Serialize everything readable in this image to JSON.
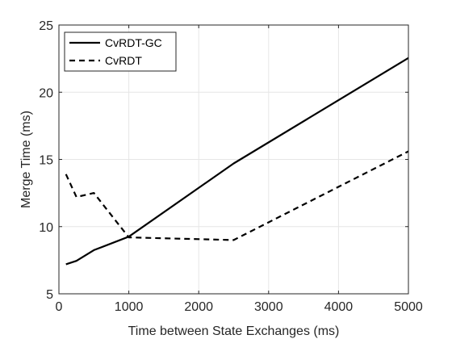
{
  "chart_data": {
    "type": "line",
    "title": "",
    "xlabel": "Time between State Exchanges (ms)",
    "ylabel": "Merge Time (ms)",
    "xlim": [
      0,
      5000
    ],
    "ylim": [
      5,
      25
    ],
    "xticks": [
      0,
      1000,
      2000,
      3000,
      4000,
      5000
    ],
    "yticks": [
      5,
      10,
      15,
      20,
      25
    ],
    "xtick_labels": [
      "0",
      "1000",
      "2000",
      "3000",
      "4000",
      "5000"
    ],
    "ytick_labels": [
      "5",
      "10",
      "15",
      "20",
      "25"
    ],
    "grid": true,
    "legend": "top-left",
    "series": [
      {
        "name": "CvRDT-GC",
        "style": "solid",
        "color": "#000000",
        "points": [
          [
            100,
            7.2
          ],
          [
            250,
            7.45
          ],
          [
            500,
            8.25
          ],
          [
            1000,
            9.25
          ],
          [
            2500,
            14.7
          ],
          [
            5000,
            22.55
          ]
        ]
      },
      {
        "name": "CvRDT",
        "style": "dashed",
        "color": "#000000",
        "points": [
          [
            100,
            13.9
          ],
          [
            250,
            12.2
          ],
          [
            500,
            12.5
          ],
          [
            1000,
            9.2
          ],
          [
            2500,
            9.0
          ],
          [
            5000,
            15.6
          ]
        ]
      }
    ]
  }
}
